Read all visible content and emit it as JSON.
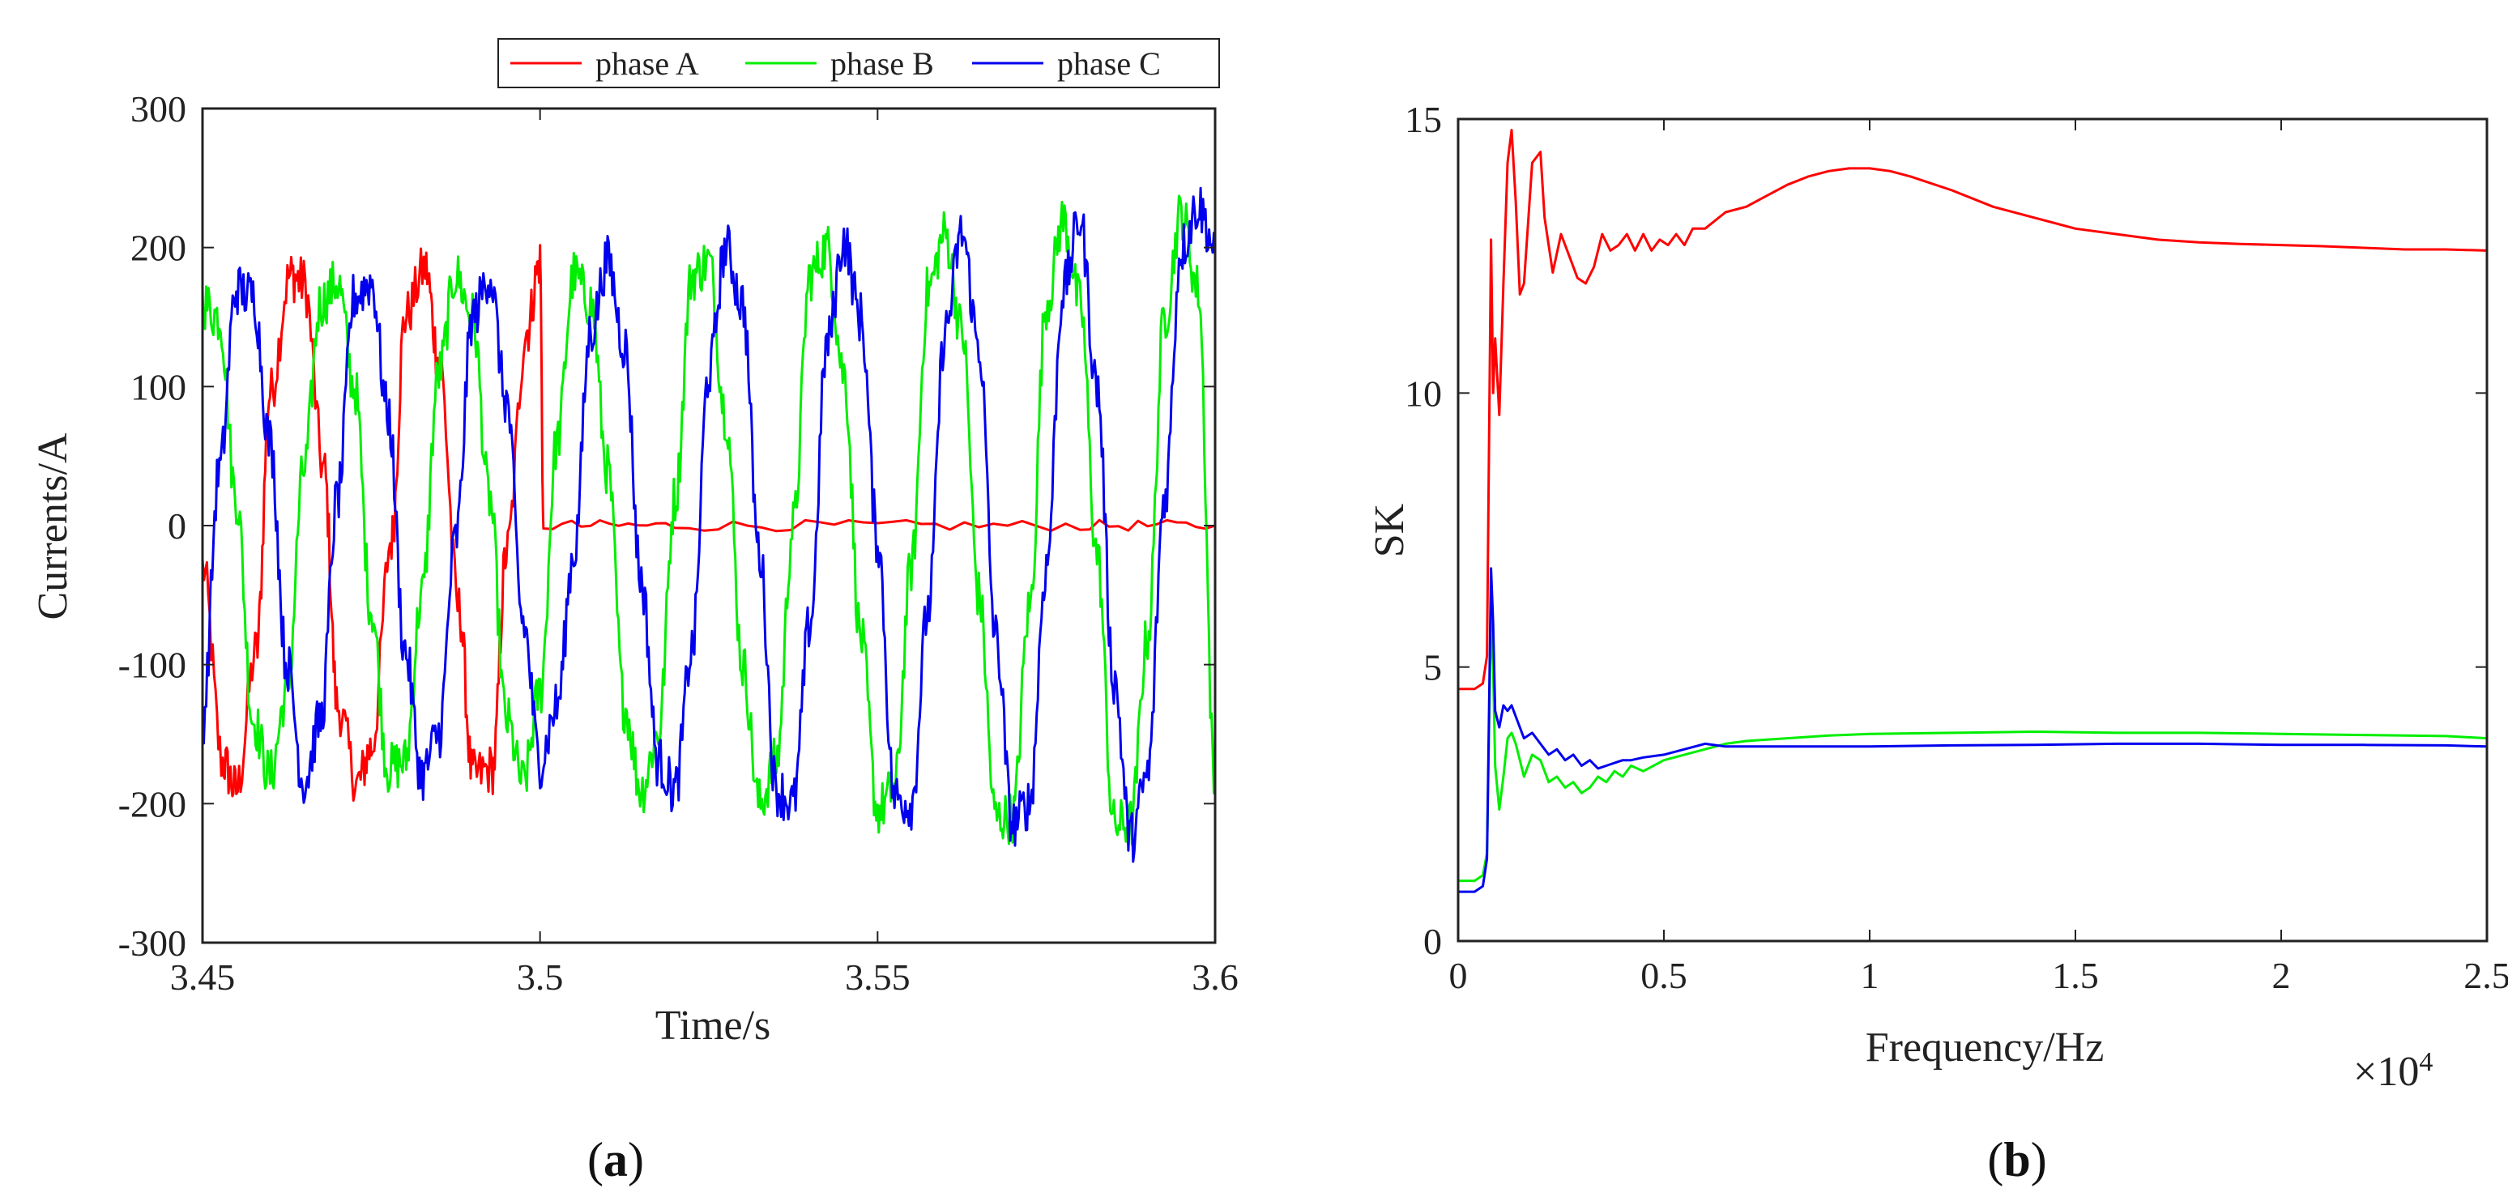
{
  "chart_data": [
    {
      "type": "line",
      "panel_label": "a",
      "title": "",
      "xlabel": "Time/s",
      "ylabel": "Currents/A",
      "xlim": [
        3.45,
        3.6
      ],
      "ylim": [
        -300,
        300
      ],
      "xticks": [
        3.45,
        3.5,
        3.55,
        3.6
      ],
      "xtick_labels": [
        "3.45",
        "3.5",
        "3.55",
        "3.6"
      ],
      "yticks": [
        -300,
        -200,
        -100,
        0,
        100,
        200,
        300
      ],
      "ytick_labels": [
        "-300",
        "-200",
        "-100",
        "0",
        "100",
        "200",
        "300"
      ],
      "legend": {
        "placement": "top-right, above axes",
        "entries": [
          "phase A",
          "phase B",
          "phase C"
        ]
      },
      "series": [
        {
          "name": "phase A",
          "color": "#ff0000",
          "description": "Sinusoid ~185 A amplitude at ~50 Hz until t=3.5 s (open-circuit fault), then ~0 A with small noise",
          "x": [
            3.45,
            3.453,
            3.455,
            3.458,
            3.46,
            3.463,
            3.465,
            3.468,
            3.47,
            3.473,
            3.475,
            3.478,
            3.48,
            3.483,
            3.485,
            3.488,
            3.49,
            3.493,
            3.495,
            3.498,
            3.5,
            3.5005,
            3.52,
            3.55,
            3.58,
            3.6
          ],
          "values": [
            -30,
            -170,
            -190,
            -90,
            95,
            180,
            175,
            40,
            -130,
            -185,
            -160,
            -10,
            150,
            185,
            120,
            -60,
            -180,
            -175,
            -20,
            140,
            190,
            0,
            0,
            0,
            0,
            0
          ]
        },
        {
          "name": "phase B",
          "color": "#00ee00",
          "description": "Sinusoid ~185 A amplitude before 3.5 s, amplitude grows to ~225 A after the fault",
          "x": [
            3.45,
            3.4525,
            3.455,
            3.4575,
            3.46,
            3.4625,
            3.465,
            3.4675,
            3.47,
            3.4725,
            3.475,
            3.4775,
            3.48,
            3.4825,
            3.485,
            3.4875,
            3.49,
            3.4925,
            3.495,
            3.4975,
            3.5,
            3.5025,
            3.505,
            3.5075,
            3.51,
            3.5125,
            3.515,
            3.5175,
            3.52,
            3.5225,
            3.525,
            3.5275,
            3.53,
            3.5325,
            3.535,
            3.5375,
            3.54,
            3.5425,
            3.545,
            3.5475,
            3.55,
            3.5525,
            3.555,
            3.5575,
            3.56,
            3.5625,
            3.565,
            3.5675,
            3.57,
            3.5725,
            3.575,
            3.5775,
            3.58,
            3.5825,
            3.585,
            3.5875,
            3.59,
            3.5925,
            3.595,
            3.5975,
            3.6
          ],
          "values": [
            160,
            150,
            20,
            -140,
            -180,
            -120,
            40,
            160,
            175,
            100,
            -60,
            -175,
            -170,
            -50,
            110,
            180,
            150,
            20,
            -140,
            -185,
            -120,
            60,
            180,
            160,
            40,
            -130,
            -190,
            -150,
            20,
            180,
            190,
            80,
            -100,
            -200,
            -170,
            0,
            180,
            200,
            110,
            -80,
            -205,
            -190,
            -30,
            170,
            210,
            140,
            -50,
            -210,
            -210,
            -60,
            160,
            220,
            160,
            -20,
            -215,
            -215,
            -80,
            150,
            225,
            170,
            -190
          ]
        },
        {
          "name": "phase C",
          "color": "#0000ee",
          "description": "Sinusoid ~185 A amplitude before 3.5 s, amplitude grows to ~235 A after the fault",
          "x": [
            3.45,
            3.4525,
            3.455,
            3.4575,
            3.46,
            3.4625,
            3.465,
            3.4675,
            3.47,
            3.4725,
            3.475,
            3.4775,
            3.48,
            3.4825,
            3.485,
            3.4875,
            3.49,
            3.4925,
            3.495,
            3.4975,
            3.5,
            3.5025,
            3.505,
            3.5075,
            3.51,
            3.5125,
            3.515,
            3.5175,
            3.52,
            3.5225,
            3.525,
            3.5275,
            3.53,
            3.5325,
            3.535,
            3.5375,
            3.54,
            3.5425,
            3.545,
            3.5475,
            3.55,
            3.5525,
            3.555,
            3.5575,
            3.56,
            3.5625,
            3.565,
            3.5675,
            3.57,
            3.5725,
            3.575,
            3.5775,
            3.58,
            3.5825,
            3.585,
            3.5875,
            3.59,
            3.5925,
            3.595,
            3.5975,
            3.6
          ],
          "values": [
            -140,
            40,
            170,
            165,
            60,
            -100,
            -185,
            -140,
            20,
            165,
            175,
            80,
            -90,
            -180,
            -150,
            -10,
            150,
            180,
            90,
            -70,
            -170,
            -130,
            -20,
            140,
            190,
            130,
            -40,
            -170,
            -190,
            -90,
            110,
            200,
            160,
            -20,
            -190,
            -200,
            -70,
            130,
            205,
            150,
            -10,
            -195,
            -200,
            -60,
            140,
            210,
            130,
            -80,
            -215,
            -200,
            -30,
            170,
            220,
            100,
            -110,
            -225,
            -180,
            20,
            200,
            230,
            200
          ]
        }
      ]
    },
    {
      "type": "line",
      "panel_label": "b",
      "title": "",
      "xlabel": "Frequency/Hz",
      "ylabel": "SK",
      "x_multiplier": "×10^4",
      "xlim": [
        0,
        2.5
      ],
      "ylim": [
        0,
        15
      ],
      "xticks": [
        0,
        0.5,
        1,
        1.5,
        2,
        2.5
      ],
      "xtick_labels": [
        "0",
        "0.5",
        "1",
        "1.5",
        "2",
        "2.5"
      ],
      "yticks": [
        0,
        5,
        10,
        15
      ],
      "ytick_labels": [
        "0",
        "5",
        "10",
        "15"
      ],
      "series": [
        {
          "name": "phase A",
          "color": "#ff0000",
          "x": [
            0,
            0.04,
            0.06,
            0.07,
            0.08,
            0.085,
            0.09,
            0.1,
            0.11,
            0.12,
            0.13,
            0.14,
            0.15,
            0.16,
            0.18,
            0.2,
            0.21,
            0.23,
            0.25,
            0.27,
            0.29,
            0.31,
            0.33,
            0.35,
            0.37,
            0.39,
            0.41,
            0.43,
            0.45,
            0.47,
            0.49,
            0.51,
            0.53,
            0.55,
            0.57,
            0.6,
            0.65,
            0.7,
            0.75,
            0.8,
            0.85,
            0.9,
            0.95,
            1.0,
            1.05,
            1.1,
            1.2,
            1.3,
            1.4,
            1.5,
            1.6,
            1.7,
            1.8,
            1.9,
            2.0,
            2.1,
            2.2,
            2.3,
            2.4,
            2.5
          ],
          "values": [
            4.6,
            4.6,
            4.7,
            5.2,
            12.8,
            10.0,
            11.0,
            9.6,
            12.0,
            14.2,
            14.8,
            13.5,
            11.8,
            12.0,
            14.2,
            14.4,
            13.2,
            12.2,
            12.9,
            12.5,
            12.1,
            12.0,
            12.3,
            12.9,
            12.6,
            12.7,
            12.9,
            12.6,
            12.9,
            12.6,
            12.8,
            12.7,
            12.9,
            12.7,
            13.0,
            13.0,
            13.3,
            13.4,
            13.6,
            13.8,
            13.95,
            14.05,
            14.1,
            14.1,
            14.05,
            13.95,
            13.7,
            13.4,
            13.2,
            13.0,
            12.9,
            12.8,
            12.75,
            12.72,
            12.7,
            12.68,
            12.65,
            12.62,
            12.62,
            12.6
          ]
        },
        {
          "name": "phase B",
          "color": "#00ee00",
          "x": [
            0,
            0.04,
            0.06,
            0.07,
            0.08,
            0.085,
            0.09,
            0.1,
            0.11,
            0.12,
            0.13,
            0.14,
            0.16,
            0.18,
            0.2,
            0.22,
            0.24,
            0.26,
            0.28,
            0.3,
            0.32,
            0.34,
            0.36,
            0.38,
            0.4,
            0.42,
            0.45,
            0.5,
            0.55,
            0.6,
            0.65,
            0.7,
            0.8,
            0.9,
            1.0,
            1.2,
            1.4,
            1.6,
            1.8,
            2.0,
            2.2,
            2.4,
            2.5
          ],
          "values": [
            1.1,
            1.1,
            1.2,
            1.6,
            6.0,
            5.0,
            3.2,
            2.4,
            3.0,
            3.7,
            3.8,
            3.6,
            3.0,
            3.4,
            3.3,
            2.9,
            3.0,
            2.8,
            2.9,
            2.7,
            2.8,
            3.0,
            2.9,
            3.1,
            3.0,
            3.2,
            3.1,
            3.3,
            3.4,
            3.5,
            3.6,
            3.65,
            3.7,
            3.75,
            3.78,
            3.8,
            3.82,
            3.8,
            3.8,
            3.78,
            3.76,
            3.74,
            3.7
          ]
        },
        {
          "name": "phase C",
          "color": "#0000ee",
          "x": [
            0,
            0.04,
            0.06,
            0.07,
            0.08,
            0.085,
            0.09,
            0.1,
            0.11,
            0.12,
            0.13,
            0.14,
            0.16,
            0.18,
            0.2,
            0.22,
            0.24,
            0.26,
            0.28,
            0.3,
            0.32,
            0.34,
            0.36,
            0.38,
            0.4,
            0.42,
            0.45,
            0.5,
            0.55,
            0.6,
            0.65,
            0.7,
            0.8,
            0.9,
            1.0,
            1.2,
            1.4,
            1.6,
            1.8,
            2.0,
            2.2,
            2.4,
            2.5
          ],
          "values": [
            0.9,
            0.9,
            1.0,
            1.5,
            6.8,
            5.8,
            4.2,
            3.9,
            4.3,
            4.2,
            4.3,
            4.1,
            3.7,
            3.8,
            3.6,
            3.4,
            3.5,
            3.3,
            3.4,
            3.2,
            3.3,
            3.15,
            3.2,
            3.25,
            3.3,
            3.3,
            3.35,
            3.4,
            3.5,
            3.6,
            3.55,
            3.55,
            3.55,
            3.55,
            3.55,
            3.57,
            3.58,
            3.6,
            3.6,
            3.58,
            3.58,
            3.57,
            3.55
          ]
        }
      ]
    }
  ],
  "captions": {
    "a": {
      "open": "(",
      "letter": "a",
      "close": ")"
    },
    "b": {
      "open": "(",
      "letter": "b",
      "close": ")"
    }
  },
  "colors": {
    "axis": "#222222",
    "phaseA": "#ff0000",
    "phaseB": "#00ee00",
    "phaseC": "#0000ee"
  }
}
